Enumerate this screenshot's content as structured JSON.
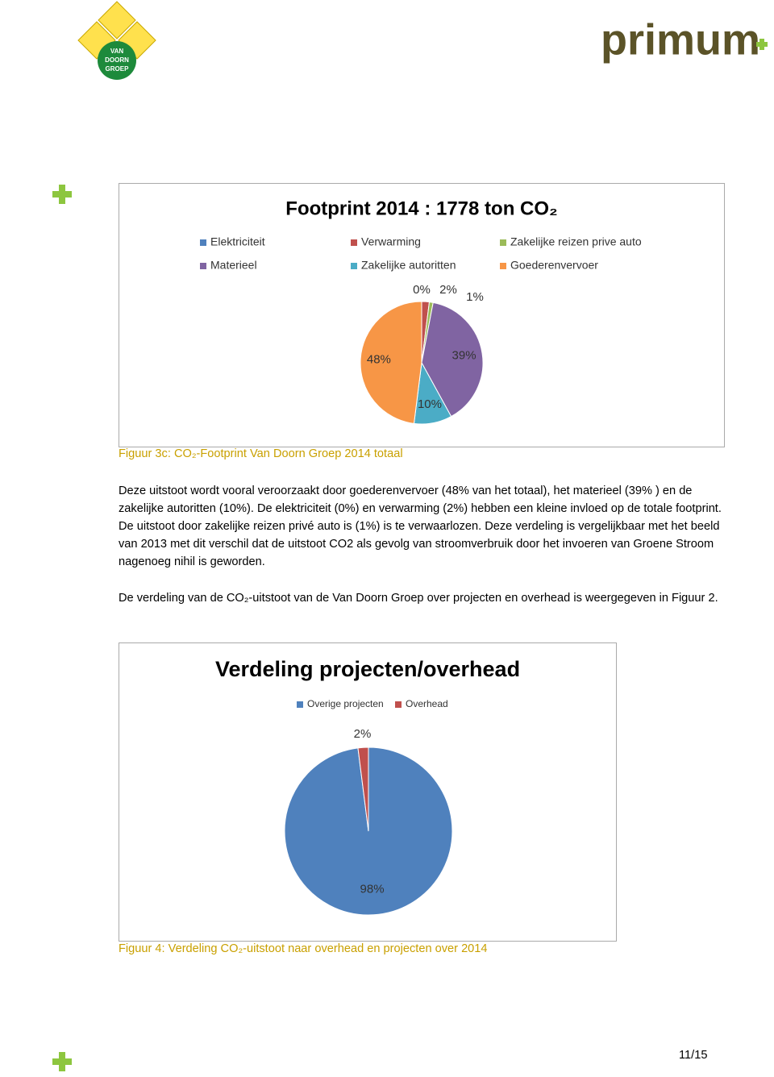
{
  "header": {
    "left_logo": [
      "VAN",
      "DOORN",
      "GROEP"
    ],
    "right_logo": "primum"
  },
  "chart_data": [
    {
      "type": "pie",
      "title": "Footprint 2014 : 1778 ton CO₂",
      "categories": [
        "Elektriciteit",
        "Verwarming",
        "Zakelijke reizen prive auto",
        "Materieel",
        "Zakelijke autoritten",
        "Goederenvervoer"
      ],
      "values": [
        0,
        2,
        1,
        39,
        10,
        48
      ],
      "value_labels": [
        "0%",
        "2%",
        "1%",
        "39%",
        "10%",
        "48%"
      ],
      "colors": [
        "#4f81bd",
        "#c0504d",
        "#9bbb59",
        "#8064a2",
        "#4bacc6",
        "#f79646"
      ],
      "legend": "top"
    },
    {
      "type": "pie",
      "title": "Verdeling projecten/overhead",
      "categories": [
        "Overige projecten",
        "Overhead"
      ],
      "values": [
        98,
        2
      ],
      "value_labels": [
        "98%",
        "2%"
      ],
      "colors": [
        "#4f81bd",
        "#c0504d"
      ],
      "legend": "top"
    }
  ],
  "document": {
    "caption_1": "Figuur 3c: CO₂-Footprint Van Doorn Groep 2014 totaal",
    "paragraph_1": "Deze uitstoot wordt vooral veroorzaakt door goederenvervoer (48% van het totaal), het materieel (39% ) en de zakelijke autoritten (10%). De elektriciteit (0%)  en verwarming (2%) hebben een kleine invloed op de totale footprint. De uitstoot door zakelijke reizen privé auto is (1%) is te verwaarlozen. Deze verdeling is vergelijkbaar met het beeld van 2013 met dit verschil dat de uitstoot CO2 als gevolg van stroomverbruik door het invoeren van Groene Stroom nagenoeg nihil is geworden.",
    "paragraph_2": "De verdeling van de CO₂-uitstoot van de Van Doorn Groep over projecten en overhead is weergegeven in Figuur 2.",
    "caption_2": "Figuur 4: Verdeling CO₂-uitstoot naar overhead en projecten over 2014",
    "page_number": "11/15"
  }
}
